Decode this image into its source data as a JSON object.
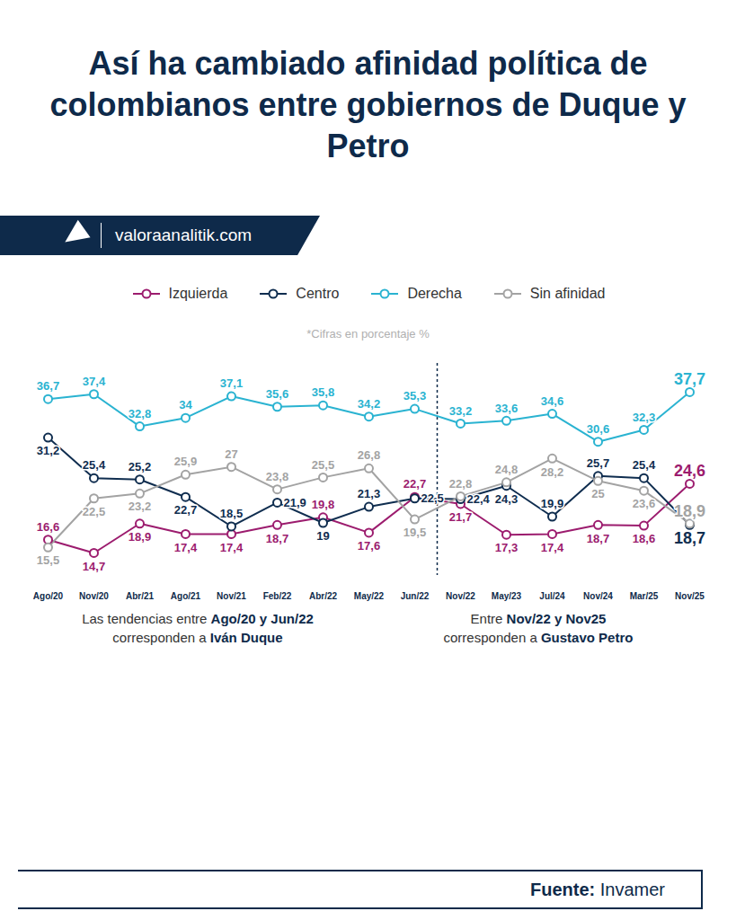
{
  "chart_data": {
    "type": "line",
    "title": "Así ha cambiado afinidad política de colombianos entre gobiernos de Duque y Petro",
    "site": "valoraanalitik.com",
    "subtitle": "*Cifras en porcentaje %",
    "categories": [
      "Ago/20",
      "Nov/20",
      "Abr/21",
      "Ago/21",
      "Nov/21",
      "Feb/22",
      "Abr/22",
      "May/22",
      "Jun/22",
      "Nov/22",
      "May/23",
      "Jul/24",
      "Nov/24",
      "Mar/25",
      "Nov/25"
    ],
    "series": [
      {
        "name": "Izquierda",
        "color": "#9c1c6e",
        "marker": "circle",
        "line_style": "solid",
        "values": [
          16.6,
          14.7,
          18.9,
          17.4,
          17.4,
          18.7,
          19.8,
          17.6,
          22.7,
          21.7,
          17.3,
          17.4,
          18.7,
          18.6,
          24.6
        ],
        "value_labels": [
          "16,6",
          "14,7",
          "18,9",
          "17,4",
          "17,4",
          "18,7",
          "19,8",
          "17,6",
          "22,7",
          "21,7",
          "17,3",
          "17,4",
          "18,7",
          "18,6",
          "24,6"
        ]
      },
      {
        "name": "Centro",
        "color": "#0f2d4f",
        "marker": "circle",
        "line_style": "solid",
        "values": [
          31.2,
          25.4,
          25.2,
          22.7,
          18.5,
          21.9,
          19,
          21.3,
          22.5,
          22.4,
          24.3,
          19.9,
          25.7,
          25.4,
          18.7
        ],
        "value_labels": [
          "31,2",
          "25,4",
          "25,2",
          "22,7",
          "18,5",
          "21,9",
          "19",
          "21,3",
          "22,5",
          "22,4",
          "24,3",
          "19,9",
          "25,7",
          "25,4",
          "18,7"
        ]
      },
      {
        "name": "Derecha",
        "color": "#2ab3d1",
        "marker": "circle",
        "line_style": "solid",
        "values": [
          36.7,
          37.4,
          32.8,
          34,
          37.1,
          35.6,
          35.8,
          34.2,
          35.3,
          33.2,
          33.6,
          34.6,
          30.6,
          32.3,
          37.7
        ],
        "value_labels": [
          "36,7",
          "37,4",
          "32,8",
          "34",
          "37,1",
          "35,6",
          "35,8",
          "34,2",
          "35,3",
          "33,2",
          "33,6",
          "34,6",
          "30,6",
          "32,3",
          "37,7"
        ]
      },
      {
        "name": "Sin afinidad",
        "color": "#a3a3a3",
        "marker": "circle",
        "line_style": "solid",
        "values": [
          15.5,
          22.5,
          23.2,
          25.9,
          27,
          23.8,
          25.5,
          26.8,
          19.5,
          22.8,
          24.8,
          28.2,
          25,
          23.6,
          18.9
        ],
        "value_labels": [
          "15,5",
          "22,5",
          "23,2",
          "25,9",
          "27",
          "23,8",
          "25,5",
          "26,8",
          "19,5",
          "22,8",
          "24,8",
          "28,2",
          "25",
          "23,6",
          "18,9"
        ]
      }
    ],
    "ylim": [
      12,
      40
    ],
    "tick_labels": "x",
    "data_labels": true,
    "legend": "top",
    "annotations": [
      {
        "lines": [
          [
            "Las tendencias entre ",
            "Ago/20 y Jun/22"
          ],
          [
            "corresponden a ",
            "Iván Duque"
          ]
        ]
      },
      {
        "lines": [
          [
            "Entre ",
            "Nov/22 y Nov25"
          ],
          [
            "corresponden a ",
            "Gustavo Petro"
          ]
        ]
      }
    ],
    "source_label": "Fuente:",
    "source": "Invamer"
  }
}
